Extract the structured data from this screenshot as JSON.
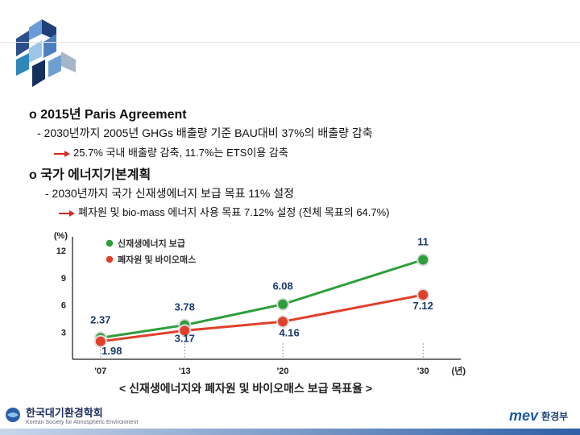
{
  "bullets": [
    {
      "marker": "o",
      "text": "2015년 Paris Agreement",
      "sub": "- 2030년까지 2005년 GHGs 배출량 기준 BAU대비 37%의 배출량 감축",
      "arrow": "25.7% 국내 배출량 감축, 11.7%는 ETS이용 감축"
    },
    {
      "marker": "o",
      "text": "국가 에너지기본계획",
      "sub": "- 2030년까지 국가 신재생에너지 보급 목표 11% 설정",
      "arrow": "폐자원 및 bio-mass 에너지 사용 목표 7.12% 설정 (전체 목표의 64.7%)"
    }
  ],
  "chart_data": {
    "type": "line",
    "categories": [
      "'07",
      "'13",
      "'20",
      "'30"
    ],
    "x_positions": [
      2007,
      2013,
      2020,
      2030
    ],
    "series": [
      {
        "name": "신재생에너지 보급",
        "values": [
          2.37,
          3.78,
          6.08,
          11
        ],
        "labels": [
          "2.37",
          "3.78",
          "6.08",
          "11"
        ],
        "color": "#2e9e3c"
      },
      {
        "name": "폐자원 및 바이오매스",
        "values": [
          1.98,
          3.17,
          4.16,
          7.12
        ],
        "labels": [
          "1.98",
          "3.17",
          "4.16",
          "7.12"
        ],
        "color": "#e0402a"
      }
    ],
    "ylabel": "(%)",
    "xlabel": "(년)",
    "yticks": [
      "3",
      "6",
      "9",
      "12"
    ],
    "ylim": [
      0,
      13
    ],
    "title": "< 신재생에너지와 폐자원 및 바이오매스 보급 목표율 >",
    "legend_position": "top-left",
    "grid": false
  },
  "footer": {
    "left_org": "한국대기환경학회",
    "left_org_sub": "Korean Society for Atmospheric Environment",
    "right_logo": "mev",
    "right_org": "환경부"
  },
  "colors": {
    "accent_blue": "#2f5fa6",
    "green_series": "#2e9e3c",
    "red_series": "#e0402a"
  }
}
